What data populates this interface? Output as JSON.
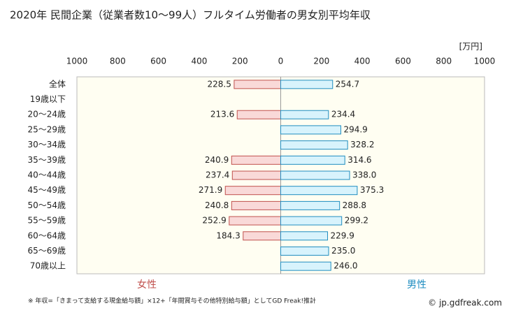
{
  "chart_data": {
    "type": "butterfly-bar",
    "title": "2020年 民間企業（従業者数10〜99人）フルタイム労働者の男女別平均年収",
    "unit": "[万円]",
    "categories": [
      "全体",
      "19歳以下",
      "20〜24歳",
      "25〜29歳",
      "30〜34歳",
      "35〜39歳",
      "40〜44歳",
      "45〜49歳",
      "50〜54歳",
      "55〜59歳",
      "60〜64歳",
      "65〜69歳",
      "70歳以上"
    ],
    "series": [
      {
        "name": "女性",
        "side": "left",
        "color": "#c0504d",
        "fill": "#f9d9d8",
        "values": [
          228.5,
          null,
          213.6,
          null,
          null,
          240.9,
          237.4,
          271.9,
          240.8,
          252.9,
          184.3,
          null,
          null
        ],
        "value_labels": [
          "228.5",
          null,
          "213.6",
          null,
          null,
          "240.9",
          "237.4",
          "271.9",
          "240.8",
          "252.9",
          "184.3",
          null,
          null
        ]
      },
      {
        "name": "男性",
        "side": "right",
        "color": "#1f8dc0",
        "fill": "#d8f3fc",
        "values": [
          254.7,
          null,
          234.4,
          294.9,
          328.2,
          314.6,
          338.0,
          375.3,
          288.8,
          299.2,
          229.9,
          235.0,
          246.0
        ],
        "value_labels": [
          "254.7",
          null,
          "234.4",
          "294.9",
          "328.2",
          "314.6",
          "338.0",
          "375.3",
          "288.8",
          "299.2",
          "229.9",
          "235.0",
          "246.0"
        ]
      }
    ],
    "xlim": [
      -1000,
      1000
    ],
    "xticks": [
      {
        "value": -1000,
        "label": "1000"
      },
      {
        "value": -800,
        "label": "800"
      },
      {
        "value": -600,
        "label": "600"
      },
      {
        "value": -400,
        "label": "400"
      },
      {
        "value": -200,
        "label": "200"
      },
      0,
      200,
      400,
      600,
      800,
      1000
    ],
    "note": "※ 年収=「きまって支給する現金給与額」×12+「年間賞与その他特別給与額」としてGD Freak!推計",
    "credit": "© jp.gdfreak.com"
  }
}
